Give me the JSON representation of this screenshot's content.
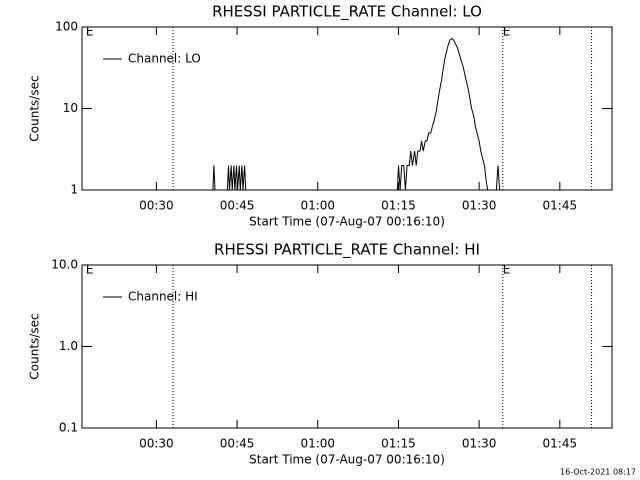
{
  "chart_data": [
    {
      "type": "line",
      "title": "RHESSI PARTICLE_RATE Channel: LO",
      "xlabel": "Start Time (07-Aug-07 00:16:10)",
      "ylabel": "Counts/sec",
      "xlim": [
        16.17,
        114.7
      ],
      "xticks": [
        {
          "value": 30,
          "label": "00:30"
        },
        {
          "value": 45,
          "label": "00:45"
        },
        {
          "value": 60,
          "label": "01:00"
        },
        {
          "value": 75,
          "label": "01:15"
        },
        {
          "value": 90,
          "label": "01:30"
        },
        {
          "value": 105,
          "label": "01:45"
        }
      ],
      "ylim": [
        1,
        100
      ],
      "yticks": [
        1,
        10,
        100
      ],
      "log_y": true,
      "legend": "upper left",
      "vlines": [
        33.1,
        94.4,
        110.9
      ],
      "annotations": [
        {
          "x": 16.9,
          "text": "E"
        },
        {
          "x": 94.4,
          "text": "E"
        }
      ],
      "series": [
        {
          "name": "Channel: LO",
          "color": "#000000",
          "x": [
            40.5,
            40.7,
            40.9,
            43.2,
            43.4,
            43.6,
            43.9,
            44.1,
            44.4,
            44.6,
            44.9,
            45.1,
            45.4,
            45.6,
            45.9,
            46.1,
            46.4,
            46.6,
            74.8,
            75.0,
            75.3,
            75.6,
            76.0,
            76.3,
            76.6,
            77.0,
            77.3,
            77.6,
            78.0,
            78.3,
            78.6,
            79.0,
            79.3,
            79.6,
            80.0,
            80.3,
            80.6,
            81.0,
            81.3,
            81.6,
            82.0,
            82.3,
            82.6,
            83.0,
            83.3,
            83.6,
            84.0,
            84.3,
            84.6,
            85.0,
            85.3,
            85.6,
            86.0,
            86.3,
            86.6,
            87.0,
            87.3,
            87.6,
            88.0,
            88.3,
            88.6,
            89.0,
            89.3,
            89.6,
            90.0,
            90.3,
            90.6,
            91.0,
            91.3,
            91.6,
            93.2,
            93.5,
            93.8
          ],
          "values": [
            1,
            2,
            1,
            1,
            2,
            1,
            2,
            1,
            2,
            1,
            2,
            1,
            2,
            1,
            2,
            1,
            2,
            1,
            1,
            2,
            1,
            2,
            2,
            1,
            2,
            2,
            3,
            2,
            3,
            2,
            3,
            3,
            4,
            3,
            4,
            4,
            5,
            5,
            6,
            7,
            9,
            12,
            16,
            22,
            30,
            40,
            52,
            62,
            70,
            72,
            68,
            62,
            55,
            47,
            40,
            33,
            27,
            22,
            17,
            13,
            10,
            8,
            6,
            5,
            4,
            3,
            2.5,
            2,
            1.3,
            1,
            1,
            2,
            1
          ]
        }
      ]
    },
    {
      "type": "line",
      "title": "RHESSI PARTICLE_RATE Channel: HI",
      "xlabel": "Start Time (07-Aug-07 00:16:10)",
      "ylabel": "Counts/sec",
      "xlim": [
        16.17,
        114.7
      ],
      "xticks": [
        {
          "value": 30,
          "label": "00:30"
        },
        {
          "value": 45,
          "label": "00:45"
        },
        {
          "value": 60,
          "label": "01:00"
        },
        {
          "value": 75,
          "label": "01:15"
        },
        {
          "value": 90,
          "label": "01:30"
        },
        {
          "value": 105,
          "label": "01:45"
        }
      ],
      "ylim": [
        0.1,
        10
      ],
      "yticks": [
        0.1,
        {
          "value": 1,
          "label": "1.0"
        },
        {
          "value": 10,
          "label": "10.0"
        }
      ],
      "log_y": true,
      "legend": "upper left",
      "vlines": [
        33.1,
        94.4,
        110.9
      ],
      "annotations": [
        {
          "x": 16.9,
          "text": "E"
        },
        {
          "x": 94.4,
          "text": "E"
        }
      ],
      "series": [
        {
          "name": "Channel: HI",
          "color": "#000000",
          "x": [],
          "values": []
        }
      ]
    }
  ],
  "footer": "16-Oct-2021 08:17"
}
